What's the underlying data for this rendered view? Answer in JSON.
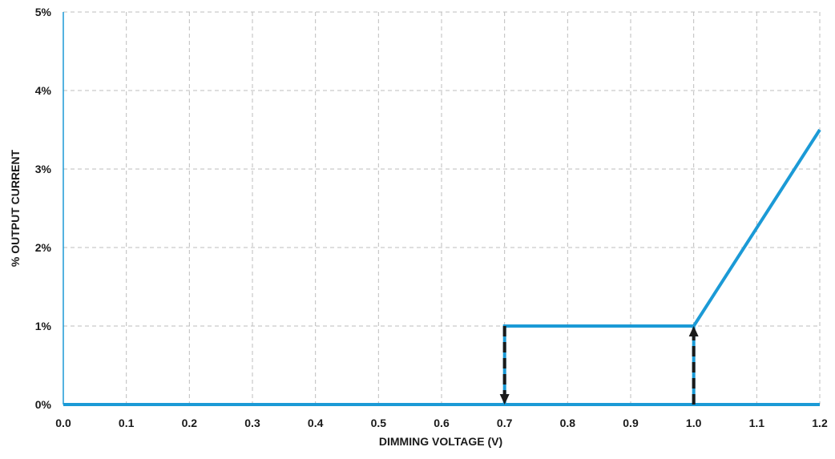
{
  "chart_data": {
    "type": "line",
    "xlabel": "DIMMING VOLTAGE (V)",
    "ylabel": "% OUTPUT CURRENT",
    "xlim": [
      0.0,
      1.2
    ],
    "ylim": [
      0,
      5
    ],
    "x_ticks": [
      "0.0",
      "0.1",
      "0.2",
      "0.3",
      "0.4",
      "0.5",
      "0.6",
      "0.7",
      "0.8",
      "0.9",
      "1.0",
      "1.1",
      "1.2"
    ],
    "x_tick_values": [
      0.0,
      0.1,
      0.2,
      0.3,
      0.4,
      0.5,
      0.6,
      0.7,
      0.8,
      0.9,
      1.0,
      1.1,
      1.2
    ],
    "y_ticks": [
      "0%",
      "1%",
      "2%",
      "3%",
      "4%",
      "5%"
    ],
    "y_tick_values": [
      0,
      1,
      2,
      3,
      4,
      5
    ],
    "grid": true,
    "series": [
      {
        "color": "#1b9ad6",
        "x": [
          0.0,
          0.7,
          1.0,
          1.2
        ],
        "y": [
          0,
          0,
          0,
          0
        ]
      },
      {
        "color": "#1b9ad6",
        "x": [
          0.7,
          0.7,
          1.0,
          1.0,
          1.2
        ],
        "y": [
          0,
          1,
          1,
          0,
          0
        ]
      },
      {
        "color": "#1b9ad6",
        "x": [
          1.0,
          1.2
        ],
        "y": [
          1,
          3.5
        ]
      }
    ],
    "annotations": [
      {
        "type": "arrow",
        "style": "dashed",
        "color": "#1a1a1a",
        "x": 0.7,
        "from_y": 1,
        "to_y": 0
      },
      {
        "type": "arrow",
        "style": "dashed",
        "color": "#1a1a1a",
        "x": 1.0,
        "from_y": 0,
        "to_y": 1
      }
    ]
  }
}
